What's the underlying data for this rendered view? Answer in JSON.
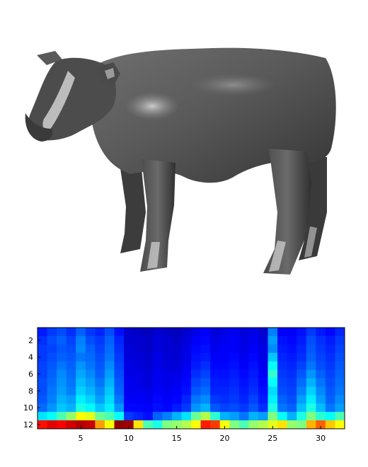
{
  "figure": {
    "top_panel": {
      "kind": "3d-shaded-model",
      "depicts": "cow",
      "surface_color": "#5a5a5a"
    },
    "bottom_panel": {
      "kind": "heatmap",
      "colormap": "jet"
    }
  },
  "chart_data": {
    "type": "heatmap",
    "title": "",
    "xlabel": "",
    "ylabel": "",
    "colormap": "jet",
    "value_range": [
      0,
      1
    ],
    "grid": false,
    "legend": "none",
    "xlim": [
      0.5,
      32.5
    ],
    "ylim": [
      12.5,
      0.5
    ],
    "x_ticks": [
      5,
      10,
      15,
      20,
      25,
      30
    ],
    "y_ticks": [
      2,
      4,
      6,
      8,
      10,
      12
    ],
    "x_tick_labels": [
      "5",
      "10",
      "15",
      "20",
      "25",
      "30"
    ],
    "y_tick_labels": [
      "2",
      "4",
      "6",
      "8",
      "10",
      "12"
    ],
    "rows": 12,
    "columns": 32,
    "values": [
      [
        0.15,
        0.18,
        0.2,
        0.17,
        0.22,
        0.18,
        0.16,
        0.2,
        0.14,
        0.08,
        0.07,
        0.06,
        0.08,
        0.07,
        0.06,
        0.08,
        0.1,
        0.12,
        0.09,
        0.1,
        0.11,
        0.09,
        0.1,
        0.08,
        0.25,
        0.12,
        0.12,
        0.14,
        0.18,
        0.15,
        0.13,
        0.16
      ],
      [
        0.17,
        0.2,
        0.22,
        0.19,
        0.25,
        0.2,
        0.18,
        0.22,
        0.16,
        0.08,
        0.08,
        0.07,
        0.09,
        0.08,
        0.07,
        0.09,
        0.12,
        0.13,
        0.1,
        0.11,
        0.12,
        0.1,
        0.11,
        0.09,
        0.28,
        0.14,
        0.13,
        0.15,
        0.2,
        0.17,
        0.15,
        0.18
      ],
      [
        0.18,
        0.19,
        0.21,
        0.2,
        0.26,
        0.22,
        0.19,
        0.23,
        0.17,
        0.09,
        0.08,
        0.07,
        0.09,
        0.08,
        0.08,
        0.1,
        0.13,
        0.14,
        0.11,
        0.12,
        0.12,
        0.1,
        0.12,
        0.1,
        0.26,
        0.15,
        0.14,
        0.16,
        0.21,
        0.18,
        0.16,
        0.19
      ],
      [
        0.18,
        0.2,
        0.22,
        0.21,
        0.24,
        0.23,
        0.2,
        0.24,
        0.18,
        0.09,
        0.09,
        0.08,
        0.1,
        0.09,
        0.08,
        0.1,
        0.14,
        0.15,
        0.12,
        0.12,
        0.13,
        0.11,
        0.13,
        0.1,
        0.32,
        0.16,
        0.15,
        0.17,
        0.22,
        0.19,
        0.17,
        0.2
      ],
      [
        0.19,
        0.21,
        0.24,
        0.22,
        0.27,
        0.24,
        0.21,
        0.26,
        0.19,
        0.1,
        0.09,
        0.08,
        0.1,
        0.09,
        0.09,
        0.11,
        0.15,
        0.17,
        0.13,
        0.13,
        0.14,
        0.12,
        0.14,
        0.11,
        0.38,
        0.17,
        0.16,
        0.19,
        0.24,
        0.2,
        0.18,
        0.21
      ],
      [
        0.19,
        0.22,
        0.26,
        0.23,
        0.29,
        0.26,
        0.22,
        0.28,
        0.2,
        0.1,
        0.1,
        0.09,
        0.11,
        0.1,
        0.1,
        0.12,
        0.17,
        0.19,
        0.14,
        0.14,
        0.15,
        0.13,
        0.15,
        0.12,
        0.42,
        0.18,
        0.17,
        0.21,
        0.27,
        0.22,
        0.19,
        0.22
      ],
      [
        0.2,
        0.23,
        0.27,
        0.24,
        0.31,
        0.28,
        0.24,
        0.3,
        0.21,
        0.11,
        0.1,
        0.09,
        0.11,
        0.1,
        0.11,
        0.13,
        0.19,
        0.21,
        0.15,
        0.15,
        0.16,
        0.14,
        0.16,
        0.13,
        0.38,
        0.19,
        0.18,
        0.23,
        0.3,
        0.24,
        0.2,
        0.23
      ],
      [
        0.2,
        0.24,
        0.28,
        0.25,
        0.33,
        0.3,
        0.26,
        0.32,
        0.22,
        0.11,
        0.11,
        0.1,
        0.12,
        0.11,
        0.12,
        0.14,
        0.21,
        0.23,
        0.16,
        0.16,
        0.17,
        0.15,
        0.17,
        0.14,
        0.34,
        0.2,
        0.19,
        0.25,
        0.33,
        0.26,
        0.21,
        0.24
      ],
      [
        0.21,
        0.25,
        0.3,
        0.28,
        0.36,
        0.33,
        0.28,
        0.34,
        0.24,
        0.12,
        0.12,
        0.11,
        0.13,
        0.12,
        0.13,
        0.16,
        0.24,
        0.26,
        0.18,
        0.17,
        0.18,
        0.16,
        0.19,
        0.15,
        0.36,
        0.22,
        0.2,
        0.28,
        0.36,
        0.28,
        0.22,
        0.26
      ],
      [
        0.23,
        0.27,
        0.32,
        0.3,
        0.4,
        0.37,
        0.32,
        0.36,
        0.27,
        0.13,
        0.13,
        0.12,
        0.14,
        0.13,
        0.15,
        0.18,
        0.27,
        0.3,
        0.21,
        0.19,
        0.2,
        0.18,
        0.21,
        0.17,
        0.4,
        0.24,
        0.22,
        0.31,
        0.4,
        0.31,
        0.24,
        0.28
      ],
      [
        0.35,
        0.38,
        0.45,
        0.52,
        0.62,
        0.6,
        0.48,
        0.45,
        0.38,
        0.18,
        0.16,
        0.14,
        0.22,
        0.25,
        0.3,
        0.35,
        0.48,
        0.55,
        0.42,
        0.3,
        0.28,
        0.24,
        0.3,
        0.28,
        0.5,
        0.38,
        0.3,
        0.4,
        0.5,
        0.42,
        0.38,
        0.45
      ],
      [
        0.86,
        0.9,
        0.88,
        0.92,
        0.95,
        0.93,
        0.72,
        0.62,
        0.98,
        0.97,
        0.65,
        0.45,
        0.4,
        0.5,
        0.52,
        0.55,
        0.62,
        0.85,
        0.82,
        0.62,
        0.5,
        0.45,
        0.52,
        0.55,
        0.6,
        0.65,
        0.52,
        0.5,
        0.7,
        0.78,
        0.68,
        0.62
      ]
    ]
  }
}
